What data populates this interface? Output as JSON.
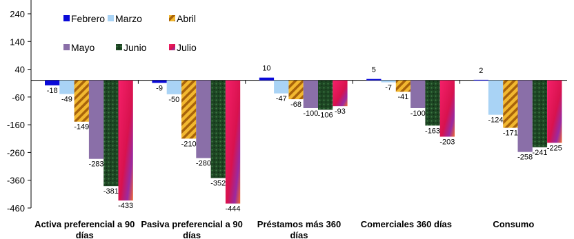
{
  "chart_data": {
    "type": "bar",
    "title": "",
    "xlabel": "",
    "ylabel": "",
    "ylim": [
      -460,
      260
    ],
    "yticks": [
      240,
      140,
      40,
      -60,
      -160,
      -260,
      -360,
      -460
    ],
    "grid": false,
    "legend_position": "top-left",
    "categories": [
      [
        "Activa preferencial a 90",
        "días"
      ],
      [
        "Pasiva preferencial a 90",
        "días"
      ],
      [
        "Préstamos más 360",
        "días"
      ],
      [
        "Comerciales 360 días"
      ],
      [
        "Consumo"
      ]
    ],
    "series": [
      {
        "name": "Febrero",
        "color": "#0a0ad8",
        "values": [
          -18,
          -9,
          10,
          5,
          2
        ]
      },
      {
        "name": "Marzo",
        "color": "#a9d3f5",
        "values": [
          -49,
          -50,
          -47,
          -7,
          -124
        ]
      },
      {
        "name": "Abril",
        "color": "#e3a01e",
        "values": [
          -149,
          -210,
          -68,
          -41,
          -171
        ]
      },
      {
        "name": "Mayo",
        "color": "#8a6fa8",
        "values": [
          -283,
          -280,
          -100,
          -100,
          -258
        ]
      },
      {
        "name": "Junio",
        "color": "#1f4a25",
        "values": [
          -381,
          -352,
          -106,
          -163,
          -241
        ]
      },
      {
        "name": "Julio",
        "color": "#e8155a",
        "values": [
          -433,
          -444,
          -93,
          -203,
          -225
        ]
      }
    ]
  }
}
